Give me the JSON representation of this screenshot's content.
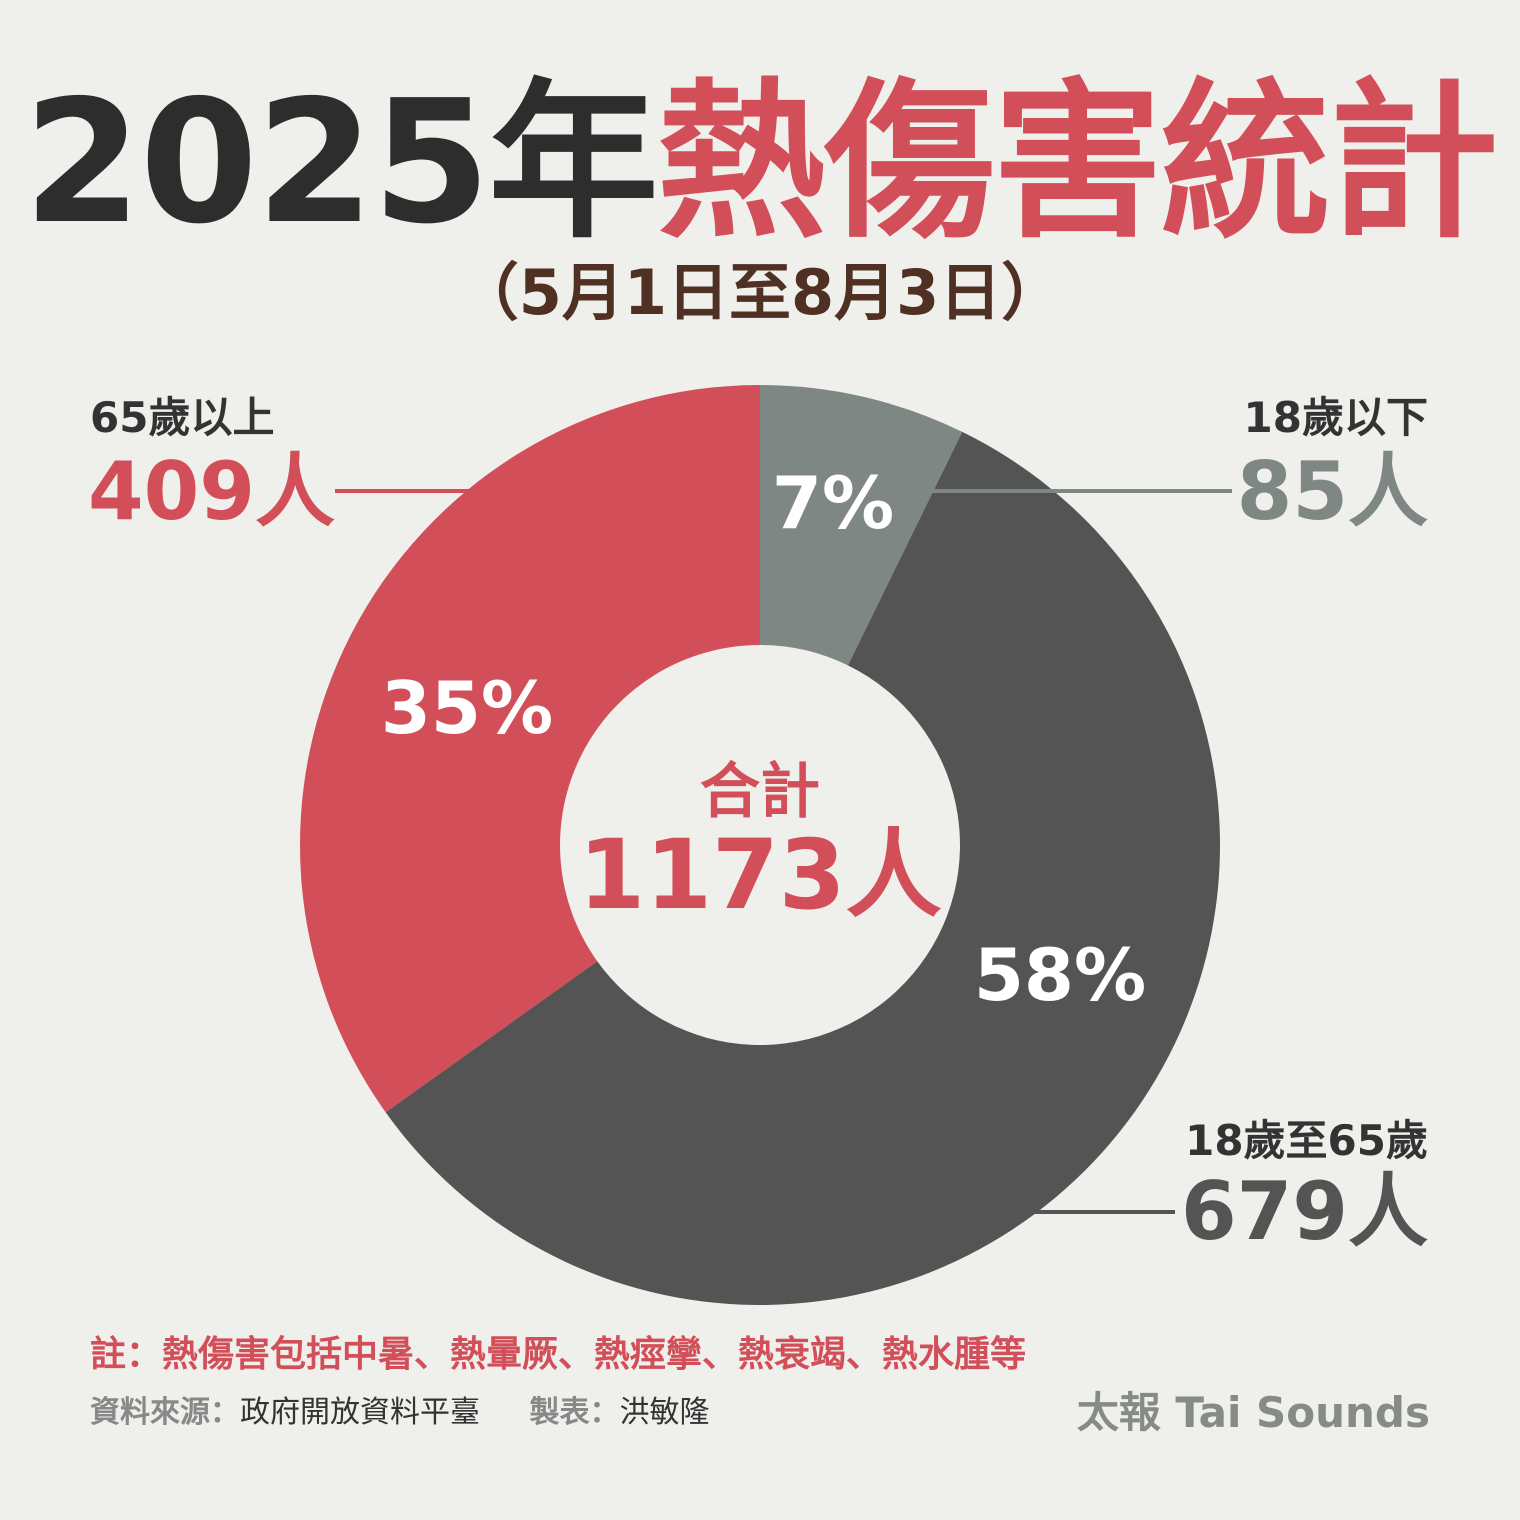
{
  "title": {
    "year": "2025年",
    "main": "熱傷害統計"
  },
  "subtitle": "（5月1日至8月3日）",
  "chart_data": {
    "type": "pie",
    "style": "donut",
    "total": {
      "label": "合計",
      "value": "1173人",
      "number": 1173
    },
    "slices": [
      {
        "category": "18歲以下",
        "count": 85,
        "count_label": "85人",
        "percent": 7,
        "percent_label": "7%",
        "color": "#7f8784"
      },
      {
        "category": "18歲至65歲",
        "count": 679,
        "count_label": "679人",
        "percent": 58,
        "percent_label": "58%",
        "color": "#545454"
      },
      {
        "category": "65歲以上",
        "count": 409,
        "count_label": "409人",
        "percent": 35,
        "percent_label": "35%",
        "color": "#d24f5a"
      }
    ]
  },
  "colors": {
    "accent": "#d24f5a",
    "dark": "#2d2d2d",
    "background": "#efefeb"
  },
  "note": "註：熱傷害包括中暑、熱暈厥、熱痙攣、熱衰竭、熱水腫等",
  "source": {
    "label": "資料來源：",
    "value": "政府開放資料平臺"
  },
  "credit": {
    "label": "製表：",
    "value": "洪敏隆"
  },
  "logo": "太報 Tai Sounds"
}
